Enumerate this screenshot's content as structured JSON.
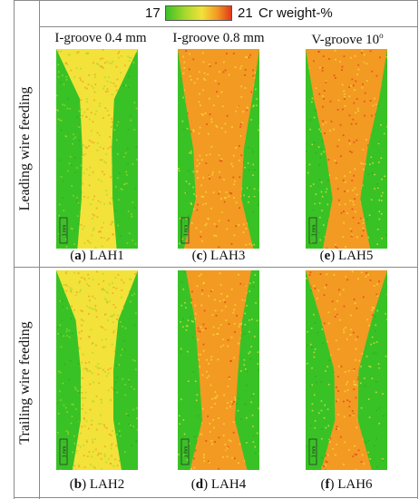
{
  "legend": {
    "min_label": "17",
    "max_label": "21",
    "quantity_label": "Cr weight-%",
    "colors": [
      "#39c225",
      "#a9d92b",
      "#f3e23a",
      "#f39a23",
      "#e2391a"
    ]
  },
  "columns": [
    {
      "label": "I-groove 0.4 mm"
    },
    {
      "label": "I-groove 0.8 mm"
    },
    {
      "label": "V-groove 10",
      "superscript": "o"
    }
  ],
  "rows": [
    {
      "label": "Leading wire feeding"
    },
    {
      "label": "Trailing wire feeding"
    }
  ],
  "panels": [
    {
      "letter": "a",
      "sample": " LAH1",
      "scale_text": "1 mm"
    },
    {
      "letter": "c",
      "sample": " LAH3",
      "scale_text": "1 mm"
    },
    {
      "letter": "e",
      "sample": " LAH5",
      "scale_text": "1 mm"
    },
    {
      "letter": "b",
      "sample": " LAH2",
      "scale_text": "1 mm"
    },
    {
      "letter": "d",
      "sample": " LAH4",
      "scale_text": "1 mm"
    },
    {
      "letter": "f",
      "sample": " LAH6",
      "scale_text": "1 mm"
    }
  ]
}
